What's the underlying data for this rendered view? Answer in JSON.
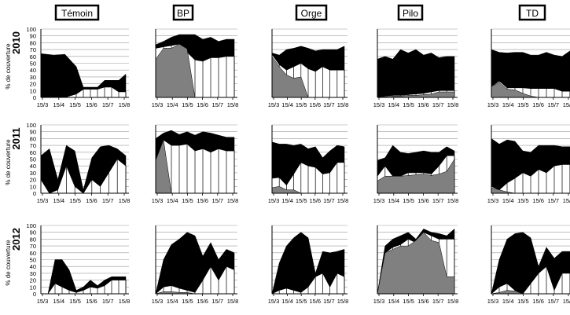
{
  "figure": {
    "columns": [
      "Témoin",
      "BP",
      "Orge",
      "Pilo",
      "TD"
    ],
    "rows": [
      {
        "year": "2010",
        "ylabel": "% de couverture"
      },
      {
        "year": "2011",
        "ylabel": "% de couverture"
      },
      {
        "year": "2012",
        "ylabel": "% de couverture"
      }
    ],
    "y_ticks": [
      "0",
      "10",
      "20",
      "30",
      "40",
      "50",
      "60",
      "70",
      "80",
      "90",
      "100"
    ],
    "x_ticks": [
      "15/3",
      "15/4",
      "15/5",
      "15/6",
      "15/7",
      "15/8"
    ],
    "colors": {
      "total": "#000000",
      "grey": "#808080",
      "white": "#ffffff"
    }
  },
  "chart_data": {
    "type": "area",
    "x_ticks": [
      "15/3",
      "15/4",
      "15/5",
      "15/6",
      "15/7",
      "15/8"
    ],
    "ylim": [
      0,
      100
    ],
    "panels": [
      [
        {
          "column": "Témoin",
          "year": "2010",
          "x": [
            0,
            0.9,
            1.7,
            2.5,
            3,
            3.5,
            4,
            4.5,
            5,
            5.5,
            6
          ],
          "total": [
            64,
            62,
            63,
            45,
            15,
            15,
            15,
            25,
            25,
            25,
            34
          ],
          "white": [
            0,
            0,
            0,
            5,
            12,
            12,
            12,
            15,
            15,
            8,
            8
          ],
          "grey": [
            0,
            0,
            0,
            0,
            0,
            0,
            0,
            0,
            0,
            0,
            0
          ]
        },
        {
          "column": "BP",
          "year": "2010",
          "x": [
            0,
            0.4,
            0.8,
            1.2,
            1.6,
            2,
            2.4,
            2.8,
            3.2,
            3.6,
            4
          ],
          "total": [
            77,
            82,
            88,
            92,
            92,
            92,
            85,
            88,
            82,
            85,
            85
          ],
          "white": [
            72,
            74,
            76,
            78,
            66,
            55,
            53,
            58,
            58,
            60,
            60
          ],
          "grey": [
            56,
            72,
            72,
            78,
            71,
            0,
            0,
            0,
            0,
            0,
            0
          ]
        },
        {
          "column": "Orge",
          "year": "2010",
          "x": [
            0,
            0.4,
            0.8,
            1.2,
            1.6,
            2,
            2.4,
            2.8,
            3.2,
            3.6,
            4
          ],
          "total": [
            65,
            62,
            70,
            72,
            75,
            72,
            68,
            70,
            70,
            70,
            75
          ],
          "white": [
            63,
            48,
            40,
            45,
            50,
            42,
            38,
            45,
            40,
            40,
            40
          ],
          "grey": [
            60,
            45,
            33,
            28,
            30,
            0,
            0,
            0,
            0,
            0,
            0
          ]
        },
        {
          "column": "Pilo",
          "year": "2010",
          "x": [
            0,
            0.4,
            0.8,
            1.2,
            1.6,
            2,
            2.4,
            2.8,
            3.2,
            3.6,
            4
          ],
          "total": [
            56,
            60,
            56,
            70,
            65,
            70,
            62,
            65,
            58,
            60,
            60
          ],
          "white": [
            0,
            2,
            3,
            3,
            4,
            5,
            6,
            8,
            10,
            10,
            10
          ],
          "grey": [
            0,
            1,
            2,
            2,
            3,
            3,
            4,
            5,
            8,
            8,
            8
          ]
        },
        {
          "column": "TD",
          "year": "2010",
          "x": [
            0,
            0.4,
            0.8,
            1.2,
            1.6,
            2,
            2.4,
            2.8,
            3.2,
            3.6,
            4
          ],
          "total": [
            70,
            66,
            65,
            66,
            66,
            62,
            62,
            66,
            62,
            60,
            68
          ],
          "white": [
            16,
            24,
            14,
            14,
            14,
            13,
            13,
            13,
            13,
            9,
            9
          ],
          "grey": [
            16,
            22,
            12,
            11,
            6,
            2,
            0,
            0,
            0,
            0,
            0
          ]
        }
      ],
      [
        {
          "column": "Témoin",
          "year": "2011",
          "x": [
            0,
            0.4,
            0.8,
            1.2,
            1.6,
            2,
            2.4,
            2.8,
            3.2,
            3.6,
            4
          ],
          "total": [
            55,
            65,
            20,
            70,
            62,
            5,
            52,
            68,
            70,
            65,
            55
          ],
          "white": [
            20,
            0,
            5,
            40,
            10,
            0,
            20,
            10,
            30,
            50,
            40
          ],
          "grey": [
            0,
            0,
            0,
            0,
            0,
            0,
            0,
            0,
            0,
            0,
            0
          ]
        },
        {
          "column": "BP",
          "year": "2011",
          "x": [
            0,
            0.4,
            0.8,
            1.2,
            1.6,
            2,
            2.4,
            2.8,
            3.2,
            3.6,
            4
          ],
          "total": [
            80,
            88,
            92,
            86,
            90,
            85,
            90,
            88,
            85,
            82,
            82
          ],
          "white": [
            48,
            78,
            70,
            70,
            72,
            62,
            65,
            60,
            65,
            62,
            62
          ],
          "grey": [
            48,
            78,
            0,
            0,
            0,
            0,
            0,
            0,
            0,
            0,
            0
          ]
        },
        {
          "column": "Orge",
          "year": "2011",
          "x": [
            0,
            0.4,
            0.8,
            1.2,
            1.6,
            2,
            2.4,
            2.8,
            3.2,
            3.6,
            4
          ],
          "total": [
            75,
            72,
            72,
            70,
            72,
            65,
            68,
            52,
            62,
            70,
            68
          ],
          "white": [
            22,
            23,
            12,
            28,
            45,
            40,
            38,
            28,
            30,
            45,
            45
          ],
          "grey": [
            8,
            10,
            5,
            5,
            0,
            0,
            0,
            0,
            0,
            0,
            0
          ]
        },
        {
          "column": "Pilo",
          "year": "2011",
          "x": [
            0,
            0.4,
            0.8,
            1.2,
            1.6,
            2,
            2.4,
            2.8,
            3.2,
            3.6,
            4
          ],
          "total": [
            48,
            52,
            70,
            60,
            58,
            60,
            62,
            60,
            60,
            68,
            62
          ],
          "white": [
            25,
            40,
            25,
            25,
            30,
            30,
            30,
            28,
            40,
            55,
            55
          ],
          "grey": [
            18,
            25,
            25,
            25,
            26,
            27,
            28,
            26,
            28,
            32,
            50
          ]
        },
        {
          "column": "TD",
          "year": "2011",
          "x": [
            0,
            0.4,
            0.8,
            1.2,
            1.6,
            2,
            2.4,
            2.8,
            3.2,
            3.6,
            4
          ],
          "total": [
            80,
            72,
            78,
            76,
            62,
            60,
            70,
            70,
            70,
            68,
            68
          ],
          "white": [
            10,
            5,
            15,
            22,
            30,
            25,
            35,
            30,
            40,
            42,
            42
          ],
          "grey": [
            8,
            5,
            2,
            0,
            0,
            0,
            0,
            0,
            0,
            0,
            0
          ]
        }
      ],
      [
        {
          "column": "Témoin",
          "year": "2012",
          "x": [
            0,
            0.5,
            1,
            1.5,
            2,
            2.5,
            3,
            3.5,
            4,
            4.5,
            5,
            5.5,
            6
          ],
          "total": [
            0,
            0,
            50,
            50,
            35,
            5,
            10,
            20,
            12,
            20,
            25,
            25,
            25
          ],
          "white": [
            0,
            0,
            15,
            10,
            5,
            2,
            5,
            10,
            8,
            12,
            20,
            20,
            20
          ],
          "grey": [
            0,
            0,
            0,
            0,
            0,
            0,
            0,
            0,
            0,
            0,
            0,
            0,
            0
          ]
        },
        {
          "column": "BP",
          "year": "2012",
          "x": [
            0,
            0.4,
            0.8,
            1.2,
            1.6,
            2,
            2.4,
            2.8,
            3.2,
            3.6,
            4
          ],
          "total": [
            0,
            50,
            72,
            80,
            90,
            85,
            55,
            75,
            50,
            65,
            60
          ],
          "white": [
            0,
            10,
            12,
            8,
            5,
            2,
            20,
            40,
            20,
            40,
            35
          ],
          "grey": [
            0,
            3,
            3,
            2,
            2,
            0,
            0,
            0,
            0,
            0,
            0
          ]
        },
        {
          "column": "Orge",
          "year": "2012",
          "x": [
            0,
            0.4,
            0.8,
            1.2,
            1.6,
            2,
            2.4,
            2.8,
            3.2,
            3.6,
            4
          ],
          "total": [
            0,
            45,
            70,
            82,
            90,
            82,
            30,
            62,
            60,
            62,
            65
          ],
          "white": [
            0,
            5,
            8,
            5,
            2,
            10,
            25,
            30,
            10,
            30,
            25
          ],
          "grey": [
            0,
            0,
            0,
            0,
            0,
            0,
            0,
            0,
            0,
            0,
            0
          ]
        },
        {
          "column": "Pilo",
          "year": "2012",
          "x": [
            0,
            0.4,
            0.8,
            1.2,
            1.6,
            2,
            2.4,
            2.8,
            3.2,
            3.6,
            4
          ],
          "total": [
            0,
            70,
            80,
            85,
            90,
            80,
            95,
            90,
            88,
            85,
            95
          ],
          "white": [
            0,
            60,
            68,
            72,
            80,
            75,
            90,
            85,
            80,
            80,
            80
          ],
          "grey": [
            0,
            60,
            65,
            70,
            70,
            78,
            90,
            78,
            75,
            25,
            25
          ]
        },
        {
          "column": "TD",
          "year": "2012",
          "x": [
            0,
            0.4,
            0.8,
            1.2,
            1.6,
            2,
            2.4,
            2.8,
            3.2,
            3.6,
            4
          ],
          "total": [
            0,
            50,
            80,
            88,
            90,
            82,
            40,
            68,
            52,
            62,
            62
          ],
          "white": [
            0,
            10,
            15,
            5,
            0,
            15,
            30,
            40,
            5,
            30,
            30
          ],
          "grey": [
            0,
            2,
            5,
            4,
            0,
            0,
            0,
            0,
            0,
            0,
            0
          ]
        }
      ]
    ]
  }
}
